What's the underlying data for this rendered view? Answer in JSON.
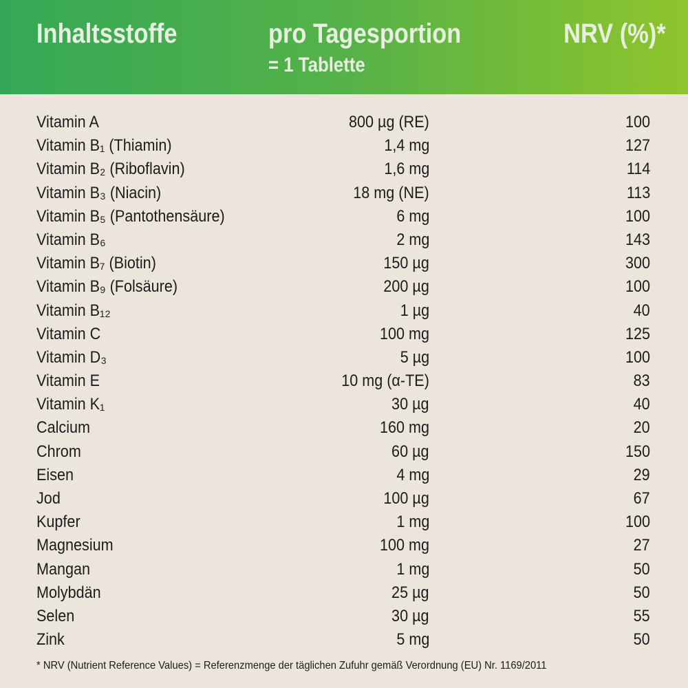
{
  "header": {
    "col_name": "Inhaltsstoffe",
    "col_amount": "pro Tagesportion",
    "col_amount_sub": "= 1 Tablette",
    "col_nrv": "NRV (%)*"
  },
  "colors": {
    "header_gradient_start": "#34a856",
    "header_gradient_end": "#8fc42c",
    "background": "#ebe5dc",
    "text": "#1c1c1c"
  },
  "rows": [
    {
      "name": "Vitamin A",
      "amount": "800 µg (RE)",
      "nrv": "100"
    },
    {
      "name": "Vitamin B₁ (Thiamin)",
      "amount": "1,4 mg",
      "nrv": "127"
    },
    {
      "name": "Vitamin B₂ (Riboflavin)",
      "amount": "1,6 mg",
      "nrv": "114"
    },
    {
      "name": "Vitamin B₃ (Niacin)",
      "amount": "18 mg (NE)",
      "nrv": "113"
    },
    {
      "name": "Vitamin B₅ (Pantothensäure)",
      "amount": "6 mg",
      "nrv": "100"
    },
    {
      "name": "Vitamin B₆",
      "amount": "2 mg",
      "nrv": "143"
    },
    {
      "name": "Vitamin B₇ (Biotin)",
      "amount": "150 µg",
      "nrv": "300"
    },
    {
      "name": "Vitamin B₉ (Folsäure)",
      "amount": "200 µg",
      "nrv": "100"
    },
    {
      "name": "Vitamin B₁₂",
      "amount": "1 µg",
      "nrv": "40"
    },
    {
      "name": "Vitamin C",
      "amount": "100 mg",
      "nrv": "125"
    },
    {
      "name": "Vitamin D₃",
      "amount": "5 µg",
      "nrv": "100"
    },
    {
      "name": "Vitamin E",
      "amount": "10 mg (α-TE)",
      "nrv": "83"
    },
    {
      "name": "Vitamin K₁",
      "amount": "30 µg",
      "nrv": "40"
    },
    {
      "name": "Calcium",
      "amount": "160 mg",
      "nrv": "20"
    },
    {
      "name": "Chrom",
      "amount": "60 µg",
      "nrv": "150"
    },
    {
      "name": "Eisen",
      "amount": "4 mg",
      "nrv": "29"
    },
    {
      "name": "Jod",
      "amount": "100 µg",
      "nrv": "67"
    },
    {
      "name": "Kupfer",
      "amount": "1 mg",
      "nrv": "100"
    },
    {
      "name": "Magnesium",
      "amount": "100 mg",
      "nrv": "27"
    },
    {
      "name": "Mangan",
      "amount": "1 mg",
      "nrv": "50"
    },
    {
      "name": "Molybdän",
      "amount": "25 µg",
      "nrv": "50"
    },
    {
      "name": "Selen",
      "amount": "30 µg",
      "nrv": "55"
    },
    {
      "name": "Zink",
      "amount": "5 mg",
      "nrv": "50"
    }
  ],
  "footnote": "* NRV (Nutrient Reference Values) = Referenzmenge der täglichen Zufuhr gemäß Verordnung (EU) Nr. 1169/2011"
}
